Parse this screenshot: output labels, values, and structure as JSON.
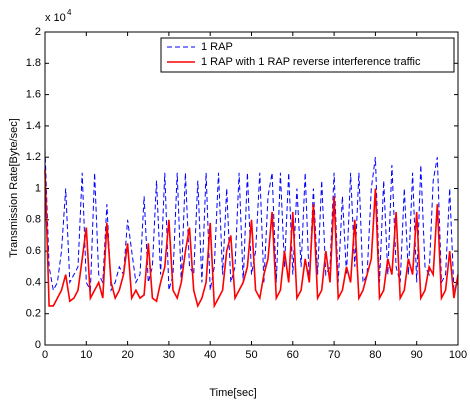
{
  "chart_data": {
    "type": "line",
    "xlabel": "Time[sec]",
    "ylabel": "Transmission Rate[Byte/sec]",
    "y_scale": {
      "base": "x 10",
      "exponent": "4"
    },
    "x": [
      0,
      1,
      2,
      3,
      4,
      5,
      6,
      7,
      8,
      9,
      10,
      11,
      12,
      13,
      14,
      15,
      16,
      17,
      18,
      19,
      20,
      21,
      22,
      23,
      24,
      25,
      26,
      27,
      28,
      29,
      30,
      31,
      32,
      33,
      34,
      35,
      36,
      37,
      38,
      39,
      40,
      41,
      42,
      43,
      44,
      45,
      46,
      47,
      48,
      49,
      50,
      51,
      52,
      53,
      54,
      55,
      56,
      57,
      58,
      59,
      60,
      61,
      62,
      63,
      64,
      65,
      66,
      67,
      68,
      69,
      70,
      71,
      72,
      73,
      74,
      75,
      76,
      77,
      78,
      79,
      80,
      81,
      82,
      83,
      84,
      85,
      86,
      87,
      88,
      89,
      90,
      91,
      92,
      93,
      94,
      95,
      96,
      97,
      98,
      99,
      100
    ],
    "series": [
      {
        "name": "1 RAP",
        "color": "#0000ff",
        "dashed": true,
        "values": [
          1.25,
          0.5,
          0.35,
          0.4,
          0.6,
          1.0,
          0.4,
          0.45,
          0.5,
          1.1,
          0.4,
          0.35,
          1.1,
          0.45,
          0.4,
          0.9,
          0.35,
          0.4,
          0.5,
          0.45,
          0.8,
          0.6,
          0.4,
          0.45,
          0.95,
          0.4,
          0.5,
          1.05,
          0.45,
          1.1,
          0.35,
          0.45,
          1.1,
          0.4,
          1.1,
          0.5,
          0.45,
          1.05,
          0.4,
          1.1,
          0.35,
          0.5,
          1.1,
          0.45,
          1.0,
          0.4,
          0.5,
          1.1,
          0.4,
          1.1,
          0.45,
          0.6,
          1.1,
          0.4,
          0.95,
          1.1,
          0.4,
          1.1,
          0.5,
          1.1,
          0.45,
          1.0,
          0.5,
          1.1,
          0.4,
          1.0,
          0.45,
          1.05,
          0.45,
          0.5,
          1.1,
          0.4,
          0.95,
          0.45,
          1.1,
          0.5,
          1.1,
          0.4,
          0.45,
          1.0,
          1.2,
          0.4,
          1.05,
          0.45,
          1.15,
          0.5,
          0.4,
          1.0,
          0.45,
          1.1,
          0.4,
          1.15,
          0.5,
          0.45,
          1.05,
          1.2,
          0.4,
          0.45,
          1.0,
          0.35,
          0.4
        ]
      },
      {
        "name": "1 RAP with 1 RAP reverse interference traffic",
        "color": "#ff0000",
        "dashed": false,
        "values": [
          1.12,
          0.25,
          0.25,
          0.3,
          0.35,
          0.45,
          0.28,
          0.3,
          0.35,
          0.55,
          0.75,
          0.3,
          0.35,
          0.4,
          0.3,
          0.78,
          0.4,
          0.3,
          0.35,
          0.45,
          0.65,
          0.3,
          0.35,
          0.3,
          0.32,
          0.65,
          0.3,
          0.28,
          0.4,
          0.5,
          0.8,
          0.35,
          0.3,
          0.4,
          0.6,
          0.75,
          0.35,
          0.25,
          0.3,
          0.4,
          0.78,
          0.25,
          0.3,
          0.35,
          0.6,
          0.7,
          0.3,
          0.35,
          0.4,
          0.5,
          0.8,
          0.35,
          0.3,
          0.45,
          0.55,
          0.85,
          0.3,
          0.35,
          0.6,
          0.4,
          0.85,
          0.3,
          0.35,
          0.55,
          0.4,
          0.9,
          0.3,
          0.35,
          0.6,
          0.4,
          0.95,
          0.3,
          0.35,
          0.5,
          0.4,
          0.8,
          0.3,
          0.35,
          0.45,
          0.55,
          1.0,
          0.3,
          0.35,
          0.55,
          0.45,
          0.85,
          0.3,
          0.35,
          0.55,
          0.45,
          0.85,
          0.3,
          0.35,
          0.5,
          0.45,
          0.9,
          0.3,
          0.35,
          0.6,
          0.3,
          0.45
        ]
      }
    ],
    "xlim": [
      0,
      100
    ],
    "xticks": [
      0,
      10,
      20,
      30,
      40,
      50,
      60,
      70,
      80,
      90,
      100
    ],
    "ylim": [
      0,
      2
    ],
    "yticks": [
      0,
      0.2,
      0.4,
      0.6,
      0.8,
      1,
      1.2,
      1.4,
      1.6,
      1.8,
      2
    ],
    "legend": "upper right",
    "grid": false
  }
}
